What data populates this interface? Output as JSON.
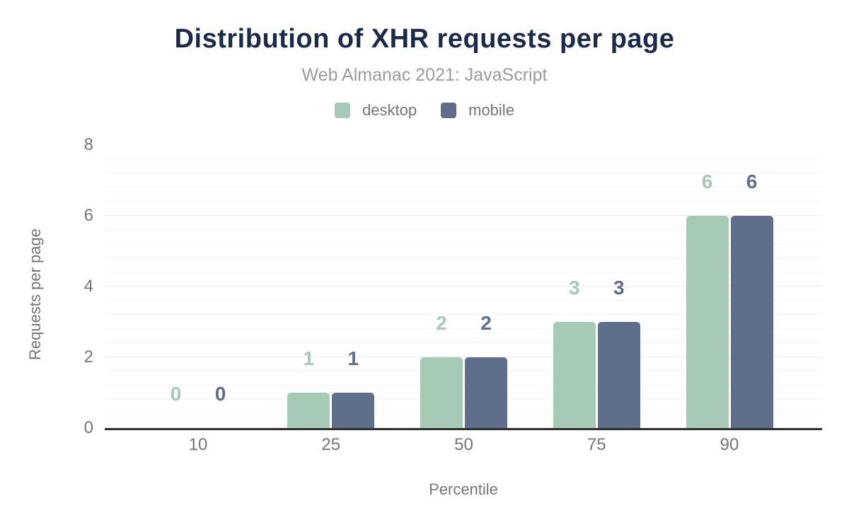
{
  "title": "Distribution of XHR requests per page",
  "subtitle": "Web Almanac 2021: JavaScript",
  "colors": {
    "title_text": "#1c2a4a",
    "subtitle_text": "#9b9b9b",
    "axis_text": "#757575",
    "baseline": "#2e2e2e",
    "gridline_major": "#ececec",
    "gridline_minor": "#f6f6f6",
    "desktop": "#a6cab6",
    "mobile": "#5f6e8a"
  },
  "chart_data": {
    "type": "bar",
    "title": "Distribution of XHR requests per page",
    "subtitle": "Web Almanac 2021: JavaScript",
    "categories": [
      "10",
      "25",
      "50",
      "75",
      "90"
    ],
    "series": [
      {
        "name": "desktop",
        "color": "#a6cab6",
        "values": [
          0,
          1,
          2,
          3,
          6
        ]
      },
      {
        "name": "mobile",
        "color": "#5f6e8a",
        "values": [
          0,
          1,
          2,
          3,
          6
        ]
      }
    ],
    "xlabel": "Percentile",
    "ylabel": "Requests per page",
    "ylim": [
      0,
      8
    ],
    "yticks": [
      0,
      2,
      4,
      6,
      8
    ],
    "grid": "horizontal major + minor",
    "legend_position": "top",
    "data_labels": true
  }
}
